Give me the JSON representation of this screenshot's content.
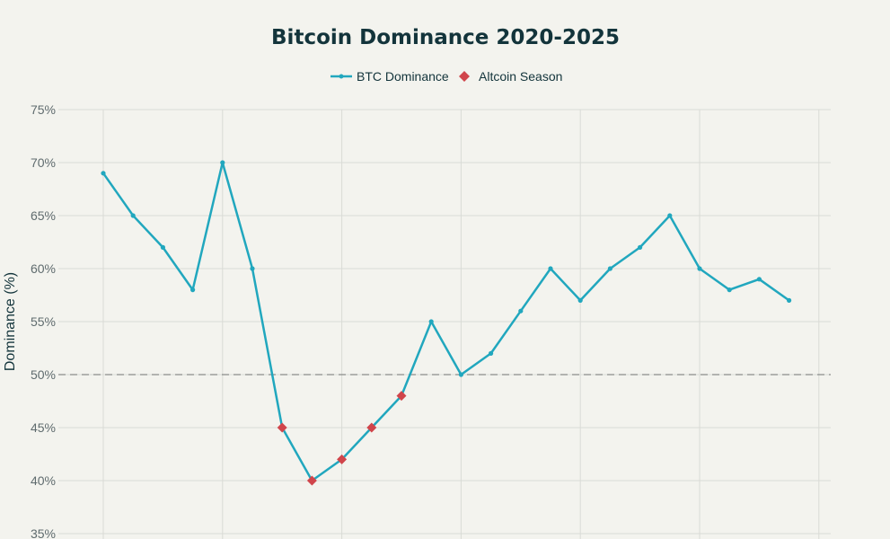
{
  "chart_data": {
    "type": "line",
    "title": "Bitcoin Dominance 2020-2025",
    "ylabel": "Dominance (%)",
    "xlabel": "",
    "ylim": [
      35,
      75
    ],
    "y_ticks": [
      "35%",
      "40%",
      "45%",
      "50%",
      "55%",
      "60%",
      "65%",
      "70%",
      "75%"
    ],
    "y_tick_values": [
      35,
      40,
      45,
      50,
      55,
      60,
      65,
      70,
      75
    ],
    "grid": true,
    "legend_placement": "top-center",
    "reference_line": {
      "y": 50,
      "style": "dashed"
    },
    "series": [
      {
        "name": "BTC Dominance",
        "color": "#21a7be",
        "marker": "circle",
        "values": [
          69,
          65,
          62,
          58,
          70,
          60,
          45,
          40,
          42,
          45,
          48,
          55,
          50,
          52,
          56,
          60,
          57,
          60,
          62,
          65,
          60,
          58,
          59,
          57
        ]
      },
      {
        "name": "Altcoin Season",
        "color": "#d0454b",
        "marker": "diamond",
        "point_indices": [
          6,
          7,
          8,
          9,
          10
        ],
        "values": [
          45,
          40,
          42,
          45,
          48
        ]
      }
    ]
  },
  "colors": {
    "background": "#f3f3ee",
    "grid": "#d9dbd6",
    "reference_line": "#8a8d8a"
  }
}
